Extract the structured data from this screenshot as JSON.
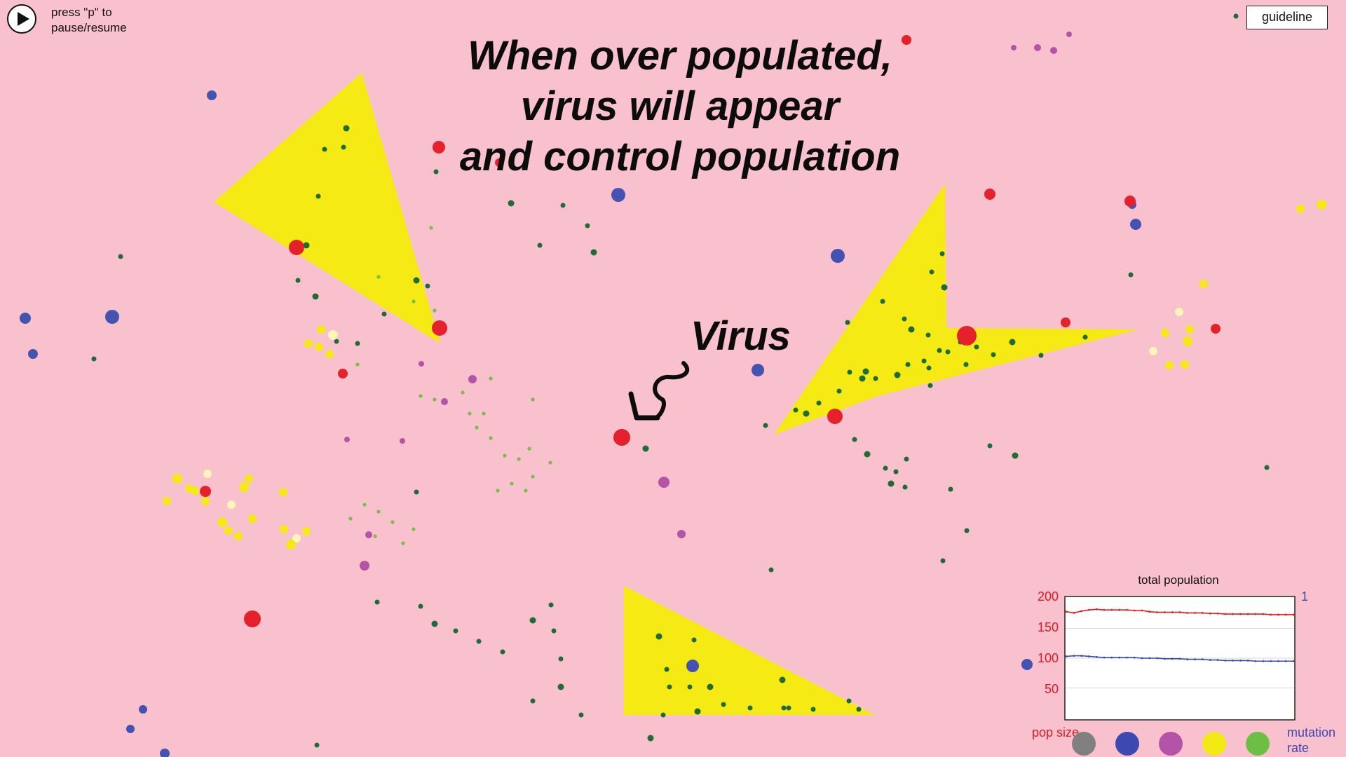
{
  "controls": {
    "play_icon": "play-icon",
    "pause_hint": "press \"p\" to pause/resume",
    "guideline_label": "guideline"
  },
  "annotations": {
    "headline": "When over populated,\nvirus will appear\nand control population",
    "virus_label": "Virus"
  },
  "palette": {
    "background": "#f9c0cd",
    "virus": "#e5212b",
    "yellow_zone": "#f5ea14",
    "green_dot": "#1d6b35",
    "light_green": "#77c043",
    "blue": "#4452b2",
    "magenta": "#b553a6",
    "pale_yellow": "#fdf6b8"
  },
  "chart": {
    "title": "total population",
    "left_axis_ticks": [
      "200",
      "150",
      "100",
      "50"
    ],
    "right_axis_tick": "1",
    "left_axis_range": [
      0,
      200
    ],
    "right_axis_range": [
      0,
      1
    ],
    "legend_left": "pop size",
    "legend_right": "mutation rate",
    "species_colors": [
      "#808080",
      "#3d48b0",
      "#b553a6",
      "#f3ea14",
      "#6bbf45"
    ],
    "chart_data": {
      "type": "line",
      "title": "total population",
      "grid": true,
      "series": [
        {
          "color": "#e21a22",
          "axis": "left",
          "values": [
            178,
            176,
            179,
            181,
            182,
            181,
            181,
            181,
            181,
            180,
            180,
            178,
            177,
            177,
            177,
            177,
            176,
            176,
            176,
            175,
            175,
            174,
            174,
            174,
            174,
            174,
            174,
            173,
            173,
            173,
            173
          ]
        },
        {
          "color": "#3d48b0",
          "axis": "left",
          "values": [
            103,
            104,
            104,
            103,
            102,
            101,
            101,
            101,
            101,
            101,
            100,
            100,
            100,
            99,
            99,
            99,
            98,
            98,
            98,
            97,
            97,
            96,
            96,
            96,
            96,
            95,
            95,
            95,
            95,
            95,
            95
          ]
        }
      ]
    }
  }
}
